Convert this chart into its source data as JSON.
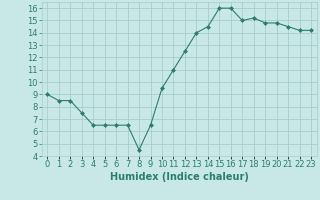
{
  "xlabel": "Humidex (Indice chaleur)",
  "x": [
    0,
    1,
    2,
    3,
    4,
    5,
    6,
    7,
    8,
    9,
    10,
    11,
    12,
    13,
    14,
    15,
    16,
    17,
    18,
    19,
    20,
    21,
    22,
    23
  ],
  "y": [
    9.0,
    8.5,
    8.5,
    7.5,
    6.5,
    6.5,
    6.5,
    6.5,
    4.5,
    6.5,
    9.5,
    11.0,
    12.5,
    14.0,
    14.5,
    16.0,
    16.0,
    15.0,
    15.2,
    14.8,
    14.8,
    14.5,
    14.2,
    14.2
  ],
  "line_color": "#2e7d6e",
  "marker": "D",
  "marker_size": 2,
  "bg_color": "#c8e8e8",
  "grid_color": "#a8cccc",
  "ylim": [
    4,
    16.5
  ],
  "yticks": [
    4,
    5,
    6,
    7,
    8,
    9,
    10,
    11,
    12,
    13,
    14,
    15,
    16
  ],
  "xtick_labels": [
    "0",
    "1",
    "2",
    "3",
    "4",
    "5",
    "6",
    "7",
    "8",
    "9",
    "10",
    "11",
    "12",
    "13",
    "14",
    "15",
    "16",
    "17",
    "18",
    "19",
    "20",
    "21",
    "22",
    "23"
  ],
  "xlabel_fontsize": 7,
  "tick_fontsize": 6,
  "linewidth": 0.8
}
